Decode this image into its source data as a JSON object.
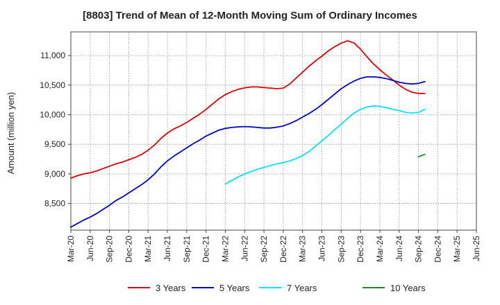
{
  "chart_data": {
    "type": "line",
    "title": "[8803]  Trend of Mean of 12-Month Moving Sum of Ordinary Incomes",
    "xlabel": "",
    "ylabel": "Amount (million yen)",
    "x_ticks": [
      "Mar-20",
      "Jun-20",
      "Sep-20",
      "Dec-20",
      "Mar-21",
      "Jun-21",
      "Sep-21",
      "Dec-21",
      "Mar-22",
      "Jun-22",
      "Sep-22",
      "Dec-22",
      "Mar-23",
      "Jun-23",
      "Sep-23",
      "Dec-23",
      "Mar-24",
      "Jun-24",
      "Sep-24",
      "Dec-24",
      "Mar-25",
      "Jun-25"
    ],
    "y_ticks": [
      "8,500",
      "9,000",
      "9,500",
      "10,000",
      "10,500",
      "11,000"
    ],
    "y_tick_values": [
      8500,
      9000,
      9500,
      10000,
      10500,
      11000
    ],
    "ylim": [
      8050,
      11400
    ],
    "grid": true,
    "legend_position": "bottom",
    "series": [
      {
        "name": "3 Years",
        "color": "#e00000",
        "start_index": 0,
        "values": [
          8930,
          8970,
          9000,
          9020,
          9050,
          9090,
          9130,
          9170,
          9200,
          9240,
          9280,
          9330,
          9400,
          9490,
          9600,
          9690,
          9760,
          9810,
          9870,
          9940,
          10010,
          10090,
          10180,
          10270,
          10340,
          10390,
          10430,
          10455,
          10470,
          10470,
          10460,
          10450,
          10440,
          10450,
          10520,
          10620,
          10720,
          10820,
          10910,
          10990,
          11080,
          11150,
          11210,
          11250,
          11210,
          11110,
          10980,
          10860,
          10760,
          10670,
          10590,
          10500,
          10430,
          10380,
          10360,
          10360
        ]
      },
      {
        "name": "5 Years",
        "color": "#0000cc",
        "start_index": 0,
        "values": [
          8100,
          8160,
          8220,
          8270,
          8330,
          8400,
          8470,
          8550,
          8610,
          8680,
          8750,
          8820,
          8900,
          9000,
          9120,
          9220,
          9300,
          9370,
          9440,
          9510,
          9570,
          9640,
          9690,
          9740,
          9770,
          9785,
          9795,
          9800,
          9795,
          9785,
          9775,
          9775,
          9790,
          9810,
          9850,
          9900,
          9960,
          10020,
          10090,
          10170,
          10260,
          10350,
          10440,
          10510,
          10570,
          10615,
          10640,
          10640,
          10630,
          10610,
          10580,
          10550,
          10530,
          10520,
          10530,
          10560
        ]
      },
      {
        "name": "7 Years",
        "color": "#00e5ff",
        "start_index": 24,
        "values": [
          8830,
          8890,
          8950,
          9000,
          9040,
          9080,
          9110,
          9140,
          9170,
          9190,
          9220,
          9260,
          9310,
          9380,
          9470,
          9560,
          9650,
          9750,
          9840,
          9940,
          10030,
          10090,
          10130,
          10150,
          10140,
          10120,
          10090,
          10070,
          10040,
          10030,
          10040,
          10090
        ]
      },
      {
        "name": "10 Years",
        "color": "#228b22",
        "start_index": 54,
        "values": [
          9290,
          9330
        ]
      }
    ]
  }
}
